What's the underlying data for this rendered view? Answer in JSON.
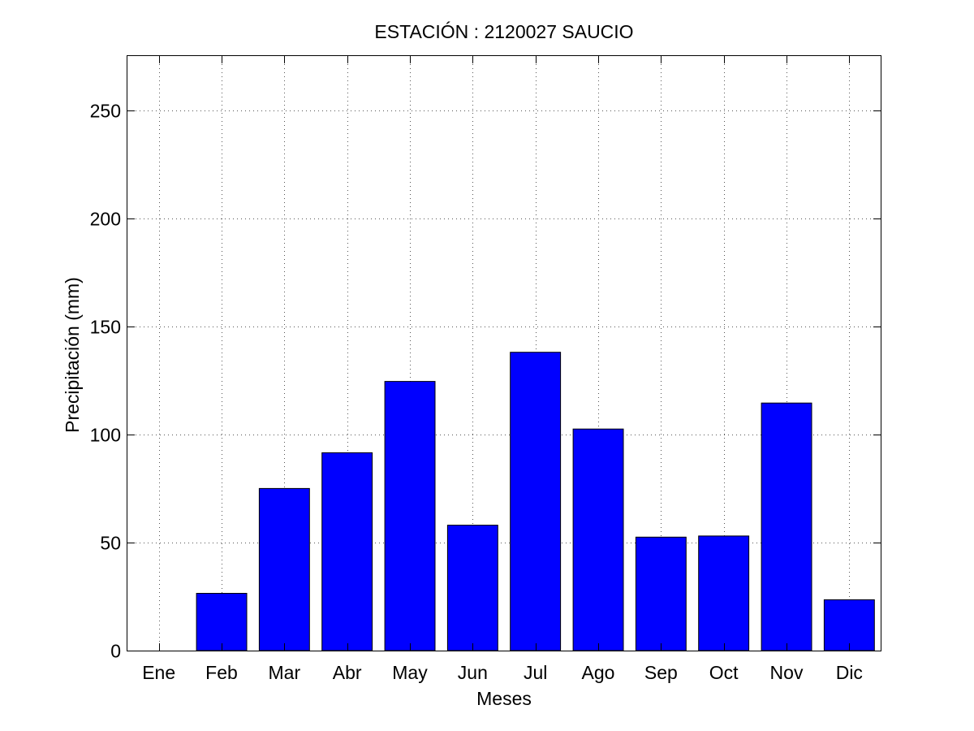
{
  "chart_data": {
    "type": "bar",
    "title": "ESTACIÓN :  2120027  SAUCIO",
    "xlabel": "Meses",
    "ylabel": "Precipitación (mm)",
    "categories": [
      "Ene",
      "Feb",
      "Mar",
      "Abr",
      "May",
      "Jun",
      "Jul",
      "Ago",
      "Sep",
      "Oct",
      "Nov",
      "Dic"
    ],
    "values": [
      0,
      26.5,
      75,
      91.5,
      124.5,
      58,
      138,
      102.5,
      52.5,
      53,
      114.5,
      23.5
    ],
    "ylim": [
      0,
      275
    ],
    "yticks": [
      0,
      50,
      100,
      150,
      200,
      250
    ],
    "grid": true,
    "bar_color": "#0000FF"
  }
}
